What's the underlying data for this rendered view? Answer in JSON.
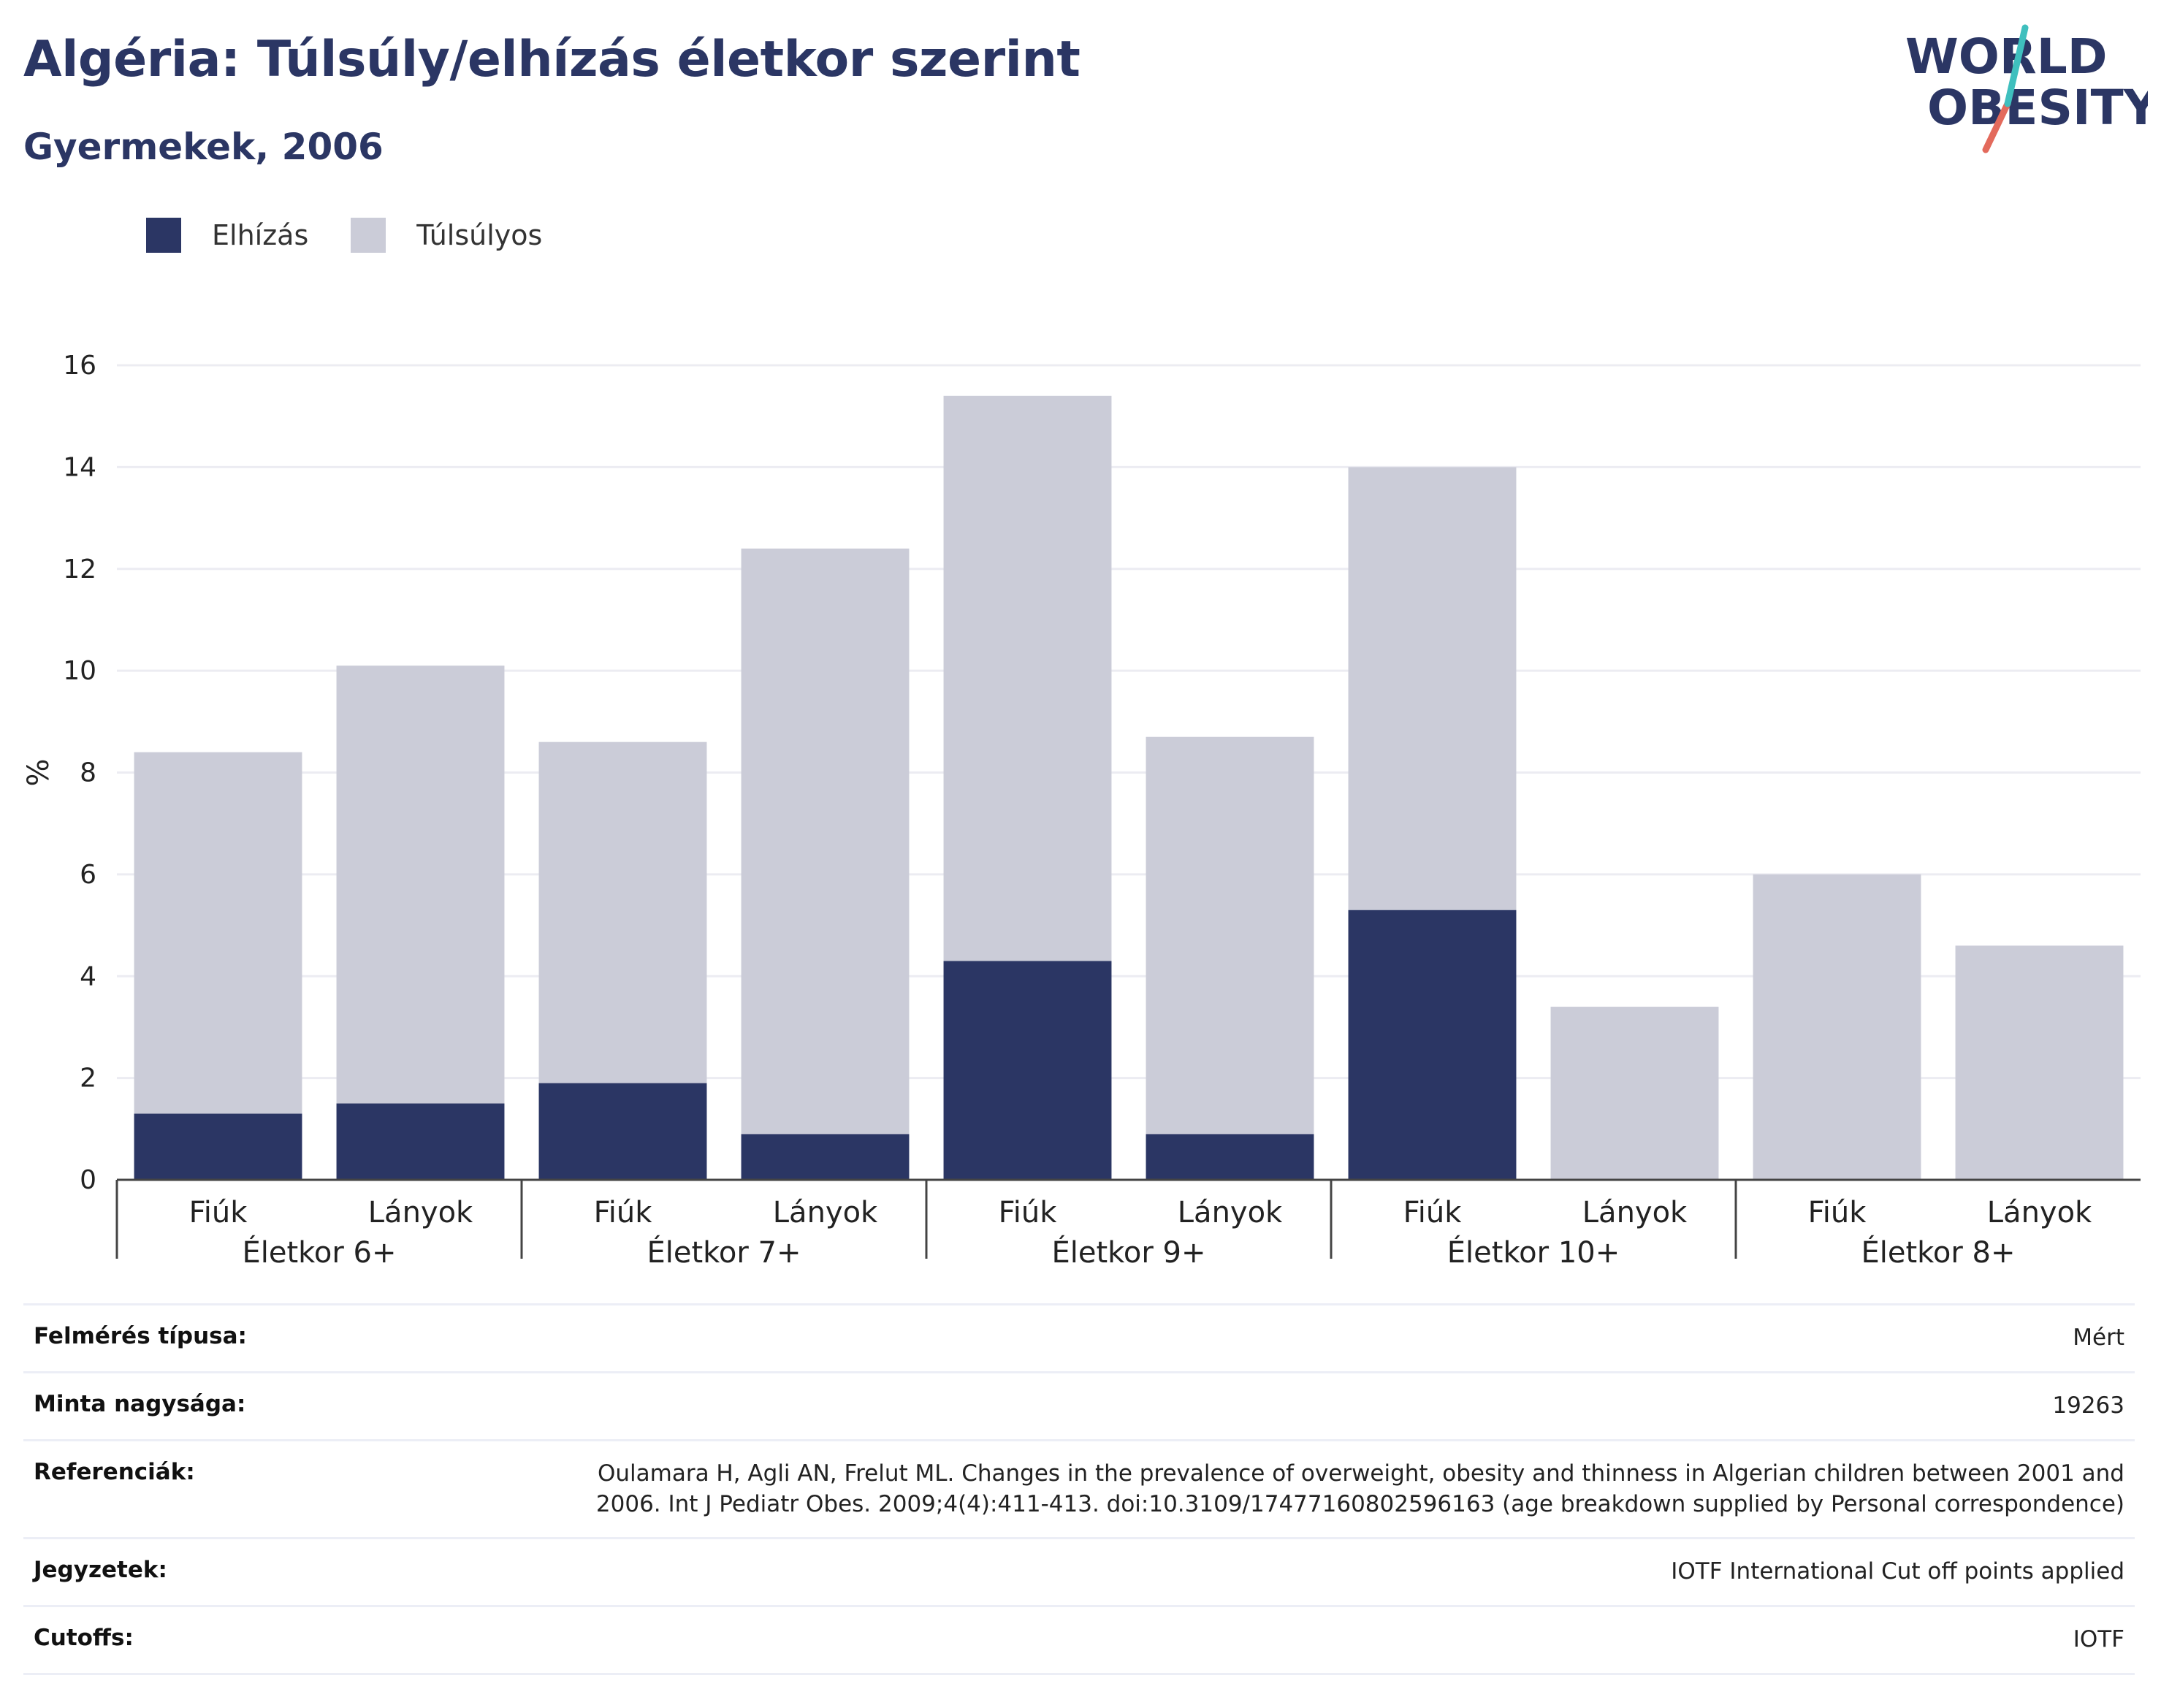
{
  "title": "Algéria: Túlsúly/elhízás életkor szerint",
  "subtitle": "Gyermekek, 2006",
  "logo": {
    "line1": "WORLD",
    "line2": "OBESITY"
  },
  "colors": {
    "obesity": "#2b3664",
    "overweight": "#cbccd8",
    "title": "#2b3664"
  },
  "legend": [
    {
      "label": "Elhízás",
      "color": "#2b3664"
    },
    {
      "label": "Túlsúlyos",
      "color": "#cbccd8"
    }
  ],
  "chart_data": {
    "type": "bar",
    "stacked": true,
    "ylabel": "%",
    "ylim": [
      0,
      16
    ],
    "yticks": [
      0,
      2,
      4,
      6,
      8,
      10,
      12,
      14,
      16
    ],
    "grid": true,
    "legend_position": "top-left",
    "groups": [
      {
        "label": "Életkor 6+",
        "categories": [
          "Fiúk",
          "Lányok"
        ]
      },
      {
        "label": "Életkor 7+",
        "categories": [
          "Fiúk",
          "Lányok"
        ]
      },
      {
        "label": "Életkor 9+",
        "categories": [
          "Fiúk",
          "Lányok"
        ]
      },
      {
        "label": "Életkor 10+",
        "categories": [
          "Fiúk",
          "Lányok"
        ]
      },
      {
        "label": "Életkor 8+",
        "categories": [
          "Fiúk",
          "Lányok"
        ]
      }
    ],
    "series": [
      {
        "name": "Elhízás",
        "values": [
          1.3,
          1.5,
          1.9,
          0.9,
          4.3,
          0.9,
          5.3,
          0,
          0,
          0
        ]
      },
      {
        "name": "Túlsúlyos",
        "values": [
          7.1,
          8.6,
          6.7,
          11.5,
          11.1,
          7.8,
          8.7,
          3.4,
          6.0,
          4.6
        ]
      }
    ]
  },
  "meta": [
    {
      "key": "Felmérés típusa:",
      "value": "Mért"
    },
    {
      "key": "Minta nagysága:",
      "value": "19263"
    },
    {
      "key": "Referenciák:",
      "value": "Oulamara H, Agli AN, Frelut ML. Changes in the prevalence of overweight, obesity and thinness in Algerian children between 2001 and 2006. Int J Pediatr Obes. 2009;4(4):411-413. doi:10.3109/17477160802596163 (age breakdown supplied by Personal correspondence)"
    },
    {
      "key": "Jegyzetek:",
      "value": "IOTF International Cut off points applied"
    },
    {
      "key": "Cutoffs:",
      "value": "IOTF"
    }
  ]
}
